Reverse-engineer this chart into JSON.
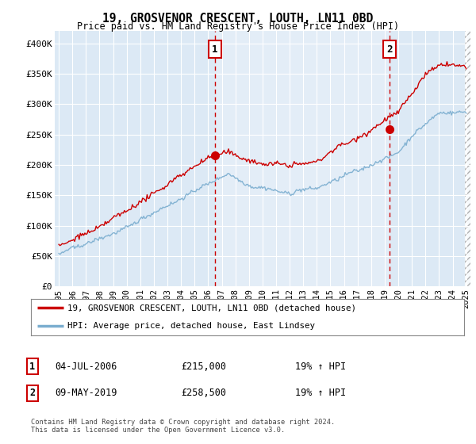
{
  "title": "19, GROSVENOR CRESCENT, LOUTH, LN11 0BD",
  "subtitle": "Price paid vs. HM Land Registry's House Price Index (HPI)",
  "legend_line1": "19, GROSVENOR CRESCENT, LOUTH, LN11 0BD (detached house)",
  "legend_line2": "HPI: Average price, detached house, East Lindsey",
  "sale1_date": "04-JUL-2006",
  "sale1_price": "£215,000",
  "sale1_hpi": "19% ↑ HPI",
  "sale1_year": 2006.5,
  "sale1_value": 215000,
  "sale2_date": "09-MAY-2019",
  "sale2_price": "£258,500",
  "sale2_hpi": "19% ↑ HPI",
  "sale2_year": 2019.37,
  "sale2_value": 258500,
  "footnote": "Contains HM Land Registry data © Crown copyright and database right 2024.\nThis data is licensed under the Open Government Licence v3.0.",
  "background_color": "#dce9f5",
  "grid_color": "#ffffff",
  "red_line_color": "#cc0000",
  "blue_line_color": "#7aadcf",
  "ylim": [
    0,
    420000
  ],
  "xlim_start": 1994.7,
  "xlim_end": 2025.3,
  "yticks": [
    0,
    50000,
    100000,
    150000,
    200000,
    250000,
    300000,
    350000,
    400000
  ],
  "ytick_labels": [
    "£0",
    "£50K",
    "£100K",
    "£150K",
    "£200K",
    "£250K",
    "£300K",
    "£350K",
    "£400K"
  ],
  "xticks": [
    1995,
    1996,
    1997,
    1998,
    1999,
    2000,
    2001,
    2002,
    2003,
    2004,
    2005,
    2006,
    2007,
    2008,
    2009,
    2010,
    2011,
    2012,
    2013,
    2014,
    2015,
    2016,
    2017,
    2018,
    2019,
    2020,
    2021,
    2022,
    2023,
    2024,
    2025
  ]
}
